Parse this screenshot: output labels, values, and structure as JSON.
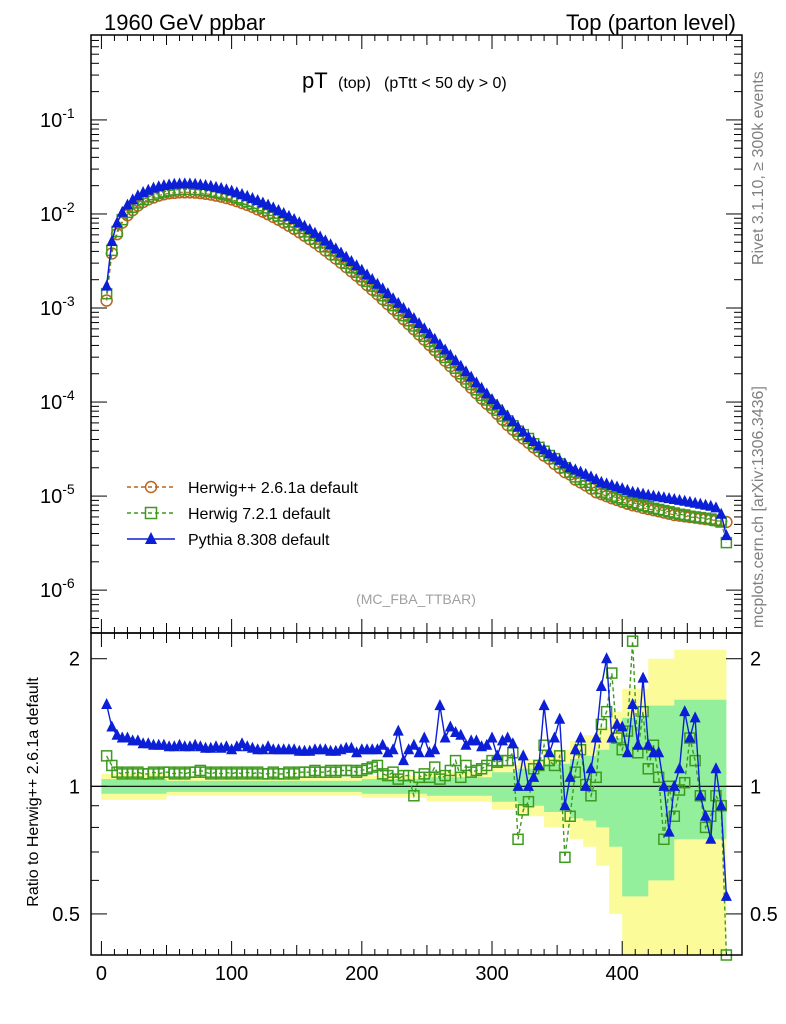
{
  "header": {
    "left": "1960 GeV ppbar",
    "right": "Top (parton level)"
  },
  "title": {
    "main": "pT",
    "sub1": "(top)",
    "sub2": "(pTtt < 50 dy > 0)"
  },
  "side_labels": {
    "rivet": "Rivet 3.1.10, ≥ 300k events",
    "mcplots": "mcplots.cern.ch [arXiv:1306.3436]"
  },
  "analysis_tag": "(MC_FBA_TTBAR)",
  "colors": {
    "herwigpp": "#b8651e",
    "herwig7": "#3d9a1e",
    "pythia": "#0b1fd6",
    "band_yellow": "#fbfb9a",
    "band_green": "#94ef9c"
  },
  "chart_data": {
    "type": "line",
    "x": [
      4,
      8,
      12,
      16,
      20,
      24,
      28,
      32,
      36,
      40,
      44,
      48,
      52,
      56,
      60,
      64,
      68,
      72,
      76,
      80,
      84,
      88,
      92,
      96,
      100,
      104,
      108,
      112,
      116,
      120,
      124,
      128,
      132,
      136,
      140,
      144,
      148,
      152,
      156,
      160,
      164,
      168,
      172,
      176,
      180,
      184,
      188,
      192,
      196,
      200,
      204,
      208,
      212,
      216,
      220,
      224,
      228,
      232,
      236,
      240,
      244,
      248,
      252,
      256,
      260,
      264,
      268,
      272,
      276,
      280,
      284,
      288,
      292,
      296,
      300,
      304,
      308,
      312,
      316,
      320,
      324,
      328,
      332,
      336,
      340,
      344,
      348,
      352,
      356,
      360,
      364,
      368,
      372,
      376,
      380,
      384,
      388,
      392,
      396,
      400,
      404,
      408,
      412,
      416,
      420,
      424,
      428,
      432,
      436,
      440,
      444,
      448,
      452,
      456,
      460,
      464,
      468,
      472,
      476,
      480
    ],
    "main_plot": {
      "yscale": "log",
      "ylim": [
        3.5e-07,
        0.8
      ],
      "xlim": [
        -8,
        492
      ],
      "y_tick_labels": [
        "10^-6",
        "10^-5",
        "10^-4",
        "10^-3",
        "10^-2",
        "10^-1"
      ],
      "series": [
        {
          "name": "Herwig++ 2.6.1a default",
          "style": "dashed",
          "marker": "circle-open",
          "values": [
            0.0012,
            0.0038,
            0.0061,
            0.0081,
            0.0097,
            0.011,
            0.0123,
            0.0134,
            0.0143,
            0.015,
            0.0157,
            0.0162,
            0.0166,
            0.0168,
            0.017,
            0.017,
            0.017,
            0.0169,
            0.0167,
            0.0164,
            0.0161,
            0.0157,
            0.0153,
            0.0148,
            0.0143,
            0.0137,
            0.0131,
            0.0125,
            0.0119,
            0.0112,
            0.0106,
            0.00995,
            0.00932,
            0.0087,
            0.0081,
            0.00751,
            0.00695,
            0.0064,
            0.00588,
            0.0054,
            0.00495,
            0.00451,
            0.00409,
            0.00371,
            0.00336,
            0.00304,
            0.00273,
            0.00246,
            0.00221,
            0.00198,
            0.00176,
            0.00157,
            0.0014,
            0.00124,
            0.0011,
            0.000976,
            0.000863,
            0.000763,
            0.000674,
            0.000595,
            0.000524,
            0.000461,
            0.000405,
            0.000356,
            0.000313,
            0.000275,
            0.000241,
            0.000211,
            0.000185,
            0.000162,
            0.000142,
            0.000124,
            0.000109,
            9.6e-05,
            8.6e-05,
            7.5e-05,
            6.5e-05,
            5.7e-05,
            5.1e-05,
            4.5e-05,
            4.1e-05,
            3.7e-05,
            3.3e-05,
            3e-05,
            2.7e-05,
            2.5e-05,
            2.2e-05,
            2e-05,
            1.8e-05,
            1.7e-05,
            1.5e-05,
            1.4e-05,
            1.3e-05,
            1.2e-05,
            1.1e-05,
            1.05e-05,
            1e-05,
            9.5e-06,
            9.1e-06,
            8.7e-06,
            8.3e-06,
            8e-06,
            7.8e-06,
            7.5e-06,
            7.3e-06,
            7.1e-06,
            6.9e-06,
            6.7e-06,
            6.5e-06,
            6.3e-06,
            6.2e-06,
            6.1e-06,
            6e-06,
            5.9e-06,
            5.8e-06,
            5.7e-06,
            5.6e-06,
            5.5e-06,
            5.4e-06,
            5.3e-06
          ]
        },
        {
          "name": "Herwig 7.2.1 default",
          "style": "dashed",
          "marker": "square-open",
          "values": [
            0.00142,
            0.0041,
            0.0065,
            0.0087,
            0.0104,
            0.0118,
            0.0131,
            0.0142,
            0.0152,
            0.016,
            0.0167,
            0.0172,
            0.0177,
            0.018,
            0.0182,
            0.0183,
            0.0183,
            0.0182,
            0.018,
            0.0177,
            0.0174,
            0.017,
            0.0165,
            0.016,
            0.0155,
            0.0149,
            0.0143,
            0.0136,
            0.0129,
            0.0122,
            0.0116,
            0.0109,
            0.0102,
            0.00953,
            0.00887,
            0.00823,
            0.00762,
            0.00702,
            0.00645,
            0.00592,
            0.00541,
            0.00493,
            0.00448,
            0.00406,
            0.00367,
            0.00331,
            0.00298,
            0.00268,
            0.0024,
            0.00215,
            0.00192,
            0.00171,
            0.00152,
            0.00135,
            0.0012,
            0.00106,
            0.000937,
            0.000829,
            0.000731,
            0.000645,
            0.000569,
            0.000501,
            0.00044,
            0.000387,
            0.00034,
            0.000298,
            0.000262,
            0.000229,
            0.0002,
            0.000176,
            0.000154,
            0.000135,
            0.000118,
            0.000105,
            9.3e-05,
            8.2e-05,
            7.1e-05,
            6.3e-05,
            5.6e-05,
            4.9e-05,
            4.5e-05,
            4.1e-05,
            3.6e-05,
            3.3e-05,
            3e-05,
            2.7e-05,
            2.5e-05,
            2.2e-05,
            2e-05,
            1.8e-05,
            1.6e-05,
            1.5e-05,
            1.4e-05,
            1.3e-05,
            1.2e-05,
            1.1e-05,
            1.05e-05,
            1e-05,
            9.6e-06,
            9.2e-06,
            8.8e-06,
            8.5e-06,
            8.2e-06,
            7.9e-06,
            7.7e-06,
            7.4e-06,
            7.2e-06,
            7e-06,
            6.8e-06,
            6.6e-06,
            6.4e-06,
            6.3e-06,
            6.1e-06,
            6e-06,
            5.9e-06,
            5.8e-06,
            5.7e-06,
            5.5e-06,
            5.3e-06,
            3.2e-06
          ]
        },
        {
          "name": "Pythia 8.308 default",
          "style": "solid",
          "marker": "triangle-filled",
          "values": [
            0.00171,
            0.0051,
            0.008,
            0.0104,
            0.0124,
            0.0141,
            0.0156,
            0.0169,
            0.0179,
            0.0188,
            0.0195,
            0.02,
            0.0204,
            0.0207,
            0.0208,
            0.0209,
            0.0208,
            0.0207,
            0.0204,
            0.0201,
            0.0197,
            0.0192,
            0.0187,
            0.0181,
            0.0175,
            0.0168,
            0.0161,
            0.0154,
            0.0146,
            0.0139,
            0.0131,
            0.0124,
            0.0116,
            0.0109,
            0.0101,
            0.00942,
            0.00873,
            0.00806,
            0.00742,
            0.00681,
            0.00623,
            0.00569,
            0.00518,
            0.0047,
            0.00426,
            0.00385,
            0.00347,
            0.00312,
            0.00281,
            0.00252,
            0.00225,
            0.00201,
            0.00179,
            0.0016,
            0.00142,
            0.00126,
            0.00112,
            0.00099,
            0.000875,
            0.000773,
            0.000682,
            0.000601,
            0.000529,
            0.000465,
            0.000408,
            0.000358,
            0.000314,
            0.000275,
            0.00024,
            0.00021,
            0.000184,
            0.00016,
            0.00014,
            0.000122,
            0.000106,
            9.3e-05,
            8.1e-05,
            7.1e-05,
            6.2e-05,
            5.4e-05,
            4.8e-05,
            4.2e-05,
            3.8e-05,
            3.4e-05,
            3.1e-05,
            2.8e-05,
            2.6e-05,
            2.4e-05,
            2.2e-05,
            2e-05,
            1.9e-05,
            1.8e-05,
            1.7e-05,
            1.6e-05,
            1.5e-05,
            1.4e-05,
            1.35e-05,
            1.3e-05,
            1.25e-05,
            1.2e-05,
            1.15e-05,
            1.1e-05,
            1.08e-05,
            1.05e-05,
            1.02e-05,
            1e-05,
            9.8e-06,
            9.6e-06,
            9.4e-06,
            9.2e-06,
            9e-06,
            8.8e-06,
            8.6e-06,
            8.4e-06,
            8.2e-06,
            8e-06,
            7.8e-06,
            7.5e-06,
            6.4e-06,
            3.8e-06
          ]
        }
      ]
    },
    "ratio_plot": {
      "ylabel": "Ratio to Herwig++ 2.6.1a default",
      "ylim": [
        0.4,
        2.3
      ],
      "y_tick_labels": [
        "0.5",
        "1",
        "2"
      ],
      "x_tick_labels": [
        "0",
        "100",
        "200",
        "300",
        "400"
      ],
      "reference": 1,
      "series": [
        {
          "name": "Herwig 7.2.1 default",
          "values": [
            1.18,
            1.12,
            1.08,
            1.07,
            1.08,
            1.07,
            1.08,
            1.07,
            1.07,
            1.08,
            1.07,
            1.08,
            1.08,
            1.07,
            1.08,
            1.07,
            1.08,
            1.08,
            1.09,
            1.08,
            1.07,
            1.08,
            1.07,
            1.08,
            1.07,
            1.08,
            1.07,
            1.08,
            1.07,
            1.08,
            1.07,
            1.07,
            1.08,
            1.07,
            1.07,
            1.08,
            1.07,
            1.08,
            1.08,
            1.08,
            1.09,
            1.08,
            1.08,
            1.09,
            1.08,
            1.09,
            1.09,
            1.09,
            1.08,
            1.09,
            1.1,
            1.11,
            1.12,
            1.07,
            1.06,
            1.08,
            1.04,
            1.06,
            1.06,
            0.95,
            1.05,
            1.07,
            1.05,
            1.11,
            1.04,
            1.06,
            1.09,
            1.15,
            1.05,
            1.12,
            1.08,
            1.09,
            1.1,
            1.12,
            1.15,
            1.14,
            1.15,
            1.15,
            1.2,
            0.75,
            0.88,
            0.92,
            1.1,
            1.12,
            1.25,
            1.15,
            1.12,
            1.18,
            0.68,
            0.85,
            1.08,
            1.22,
            1.01,
            0.95,
            1.05,
            1.4,
            1.5,
            1.85,
            1.3,
            1.22,
            1.35,
            2.2,
            1.2,
            1.5,
            1.1,
            1.25,
            1.05,
            0.75,
            1.0,
            0.85,
            0.98,
            1.02,
            1.3,
            1.15,
            0.95,
            0.8,
            0.85,
            0.95,
            0.9,
            0.4
          ]
        },
        {
          "name": "Pythia 8.308 default",
          "values": [
            1.56,
            1.38,
            1.32,
            1.3,
            1.3,
            1.28,
            1.28,
            1.26,
            1.26,
            1.25,
            1.25,
            1.25,
            1.24,
            1.24,
            1.25,
            1.24,
            1.24,
            1.25,
            1.24,
            1.23,
            1.23,
            1.24,
            1.23,
            1.24,
            1.22,
            1.24,
            1.26,
            1.24,
            1.23,
            1.22,
            1.22,
            1.24,
            1.22,
            1.22,
            1.22,
            1.22,
            1.22,
            1.21,
            1.21,
            1.21,
            1.22,
            1.22,
            1.22,
            1.21,
            1.21,
            1.22,
            1.23,
            1.23,
            1.2,
            1.22,
            1.22,
            1.22,
            1.22,
            1.25,
            1.2,
            1.22,
            1.35,
            1.15,
            1.22,
            1.25,
            1.2,
            1.3,
            1.2,
            1.22,
            1.55,
            1.3,
            1.38,
            1.34,
            1.32,
            1.25,
            1.28,
            1.28,
            1.24,
            1.25,
            1.3,
            1.18,
            1.28,
            1.3,
            1.26,
            1.0,
            1.18,
            1.0,
            1.05,
            1.12,
            1.55,
            1.2,
            1.3,
            1.44,
            0.9,
            1.05,
            1.22,
            1.3,
            1.0,
            1.1,
            1.3,
            1.72,
            2.0,
            1.3,
            1.4,
            1.38,
            1.2,
            1.56,
            1.25,
            1.8,
            1.25,
            1.2,
            1.2,
            1.0,
            0.78,
            1.0,
            1.1,
            1.5,
            1.3,
            1.45,
            0.95,
            0.85,
            0.75,
            1.1,
            0.9,
            0.55
          ]
        }
      ],
      "bands": {
        "x_edges": [
          0,
          50,
          100,
          150,
          200,
          250,
          300,
          320,
          340,
          360,
          370,
          380,
          390,
          400,
          420,
          440,
          460,
          480
        ],
        "yellow_lo": [
          0.93,
          0.95,
          0.95,
          0.95,
          0.94,
          0.92,
          0.88,
          0.85,
          0.8,
          0.75,
          0.72,
          0.65,
          0.5,
          0.35,
          0.35,
          0.4,
          0.4,
          0.4
        ],
        "yellow_hi": [
          1.07,
          1.05,
          1.05,
          1.05,
          1.06,
          1.08,
          1.12,
          1.16,
          1.22,
          1.28,
          1.32,
          1.38,
          1.5,
          1.7,
          2.0,
          2.1,
          2.1,
          2.1
        ],
        "green_lo": [
          0.96,
          0.97,
          0.97,
          0.97,
          0.96,
          0.95,
          0.92,
          0.9,
          0.87,
          0.84,
          0.83,
          0.8,
          0.72,
          0.55,
          0.6,
          0.75,
          0.75,
          0.75
        ],
        "green_hi": [
          1.04,
          1.03,
          1.03,
          1.03,
          1.04,
          1.05,
          1.08,
          1.1,
          1.13,
          1.16,
          1.18,
          1.22,
          1.3,
          1.45,
          1.55,
          1.6,
          1.6,
          1.6
        ]
      }
    }
  }
}
